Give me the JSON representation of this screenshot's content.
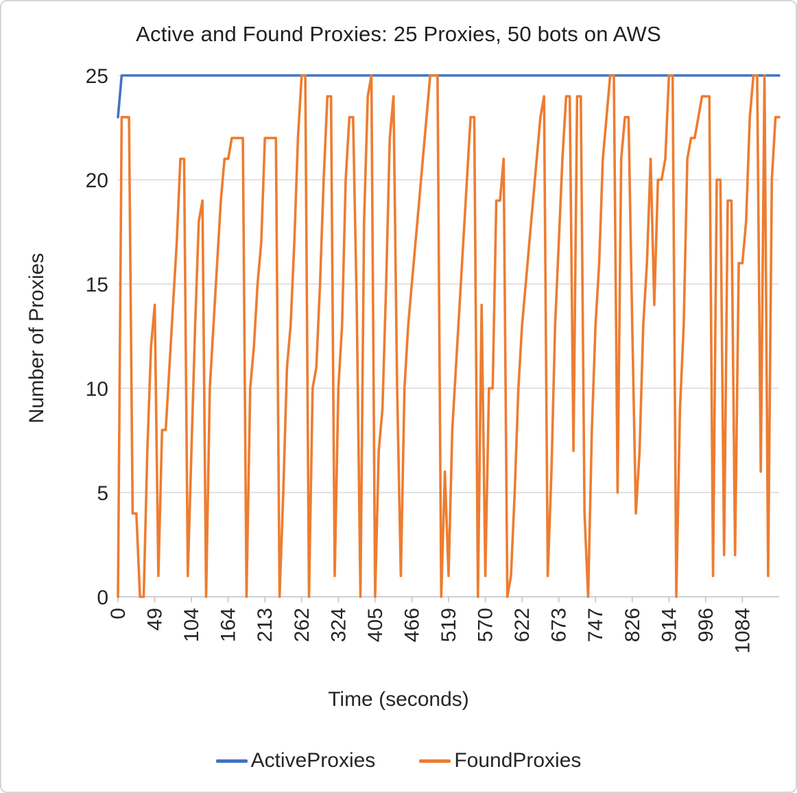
{
  "chart_data": {
    "type": "line",
    "title": "Active and Found Proxies: 25 Proxies, 50 bots on AWS",
    "xlabel": "Time (seconds)",
    "ylabel": "Number of Proxies",
    "ylim": [
      0,
      25
    ],
    "y_ticks": [
      0,
      5,
      10,
      15,
      20,
      25
    ],
    "x_tick_labels": [
      "0",
      "49",
      "104",
      "164",
      "213",
      "262",
      "324",
      "405",
      "466",
      "519",
      "570",
      "622",
      "673",
      "747",
      "826",
      "914",
      "996",
      "1084"
    ],
    "x_tick_every_n_samples": 10,
    "grid": "horizontal",
    "legend_position": "bottom",
    "colors": {
      "grid": "#D9D9D9",
      "axis": "#BFBFBF",
      "text": "#262626"
    },
    "series": [
      {
        "name": "ActiveProxies",
        "color": "#4472C4",
        "encoding": "rle",
        "values_rle": [
          [
            23,
            1
          ],
          [
            25,
            180
          ]
        ]
      },
      {
        "name": "FoundProxies",
        "color": "#ED7D31",
        "encoding": "plain",
        "values": [
          0,
          23,
          23,
          23,
          4,
          4,
          0,
          0,
          7,
          12,
          14,
          1,
          8,
          8,
          11,
          14,
          17,
          21,
          21,
          1,
          7,
          13,
          18,
          19,
          0,
          10,
          13,
          16,
          19,
          21,
          21,
          22,
          22,
          22,
          22,
          0,
          10,
          12,
          15,
          17,
          22,
          22,
          22,
          22,
          0,
          5,
          11,
          13,
          17,
          22,
          25,
          25,
          0,
          10,
          11,
          15,
          20,
          24,
          24,
          1,
          10,
          13,
          20,
          23,
          23,
          14,
          0,
          18,
          24,
          25,
          0,
          7,
          9,
          15,
          22,
          24,
          10,
          1,
          10,
          13,
          15,
          17,
          19,
          21,
          23,
          25,
          25,
          25,
          0,
          6,
          1,
          8,
          11,
          14,
          17,
          20,
          23,
          23,
          0,
          14,
          1,
          10,
          10,
          19,
          19,
          21,
          0,
          1,
          5,
          10,
          13,
          15,
          17,
          19,
          21,
          23,
          24,
          1,
          6,
          13,
          17,
          21,
          24,
          24,
          7,
          24,
          24,
          4,
          0,
          8,
          13,
          16,
          21,
          23,
          25,
          25,
          5,
          21,
          23,
          23,
          13,
          4,
          7,
          13,
          16,
          21,
          14,
          20,
          20,
          21,
          25,
          25,
          0,
          9,
          13,
          21,
          22,
          22,
          23,
          24,
          24,
          24,
          1,
          20,
          20,
          2,
          19,
          19,
          2,
          16,
          16,
          18,
          23,
          25,
          25,
          6,
          25,
          1,
          20,
          23,
          23
        ]
      }
    ]
  }
}
